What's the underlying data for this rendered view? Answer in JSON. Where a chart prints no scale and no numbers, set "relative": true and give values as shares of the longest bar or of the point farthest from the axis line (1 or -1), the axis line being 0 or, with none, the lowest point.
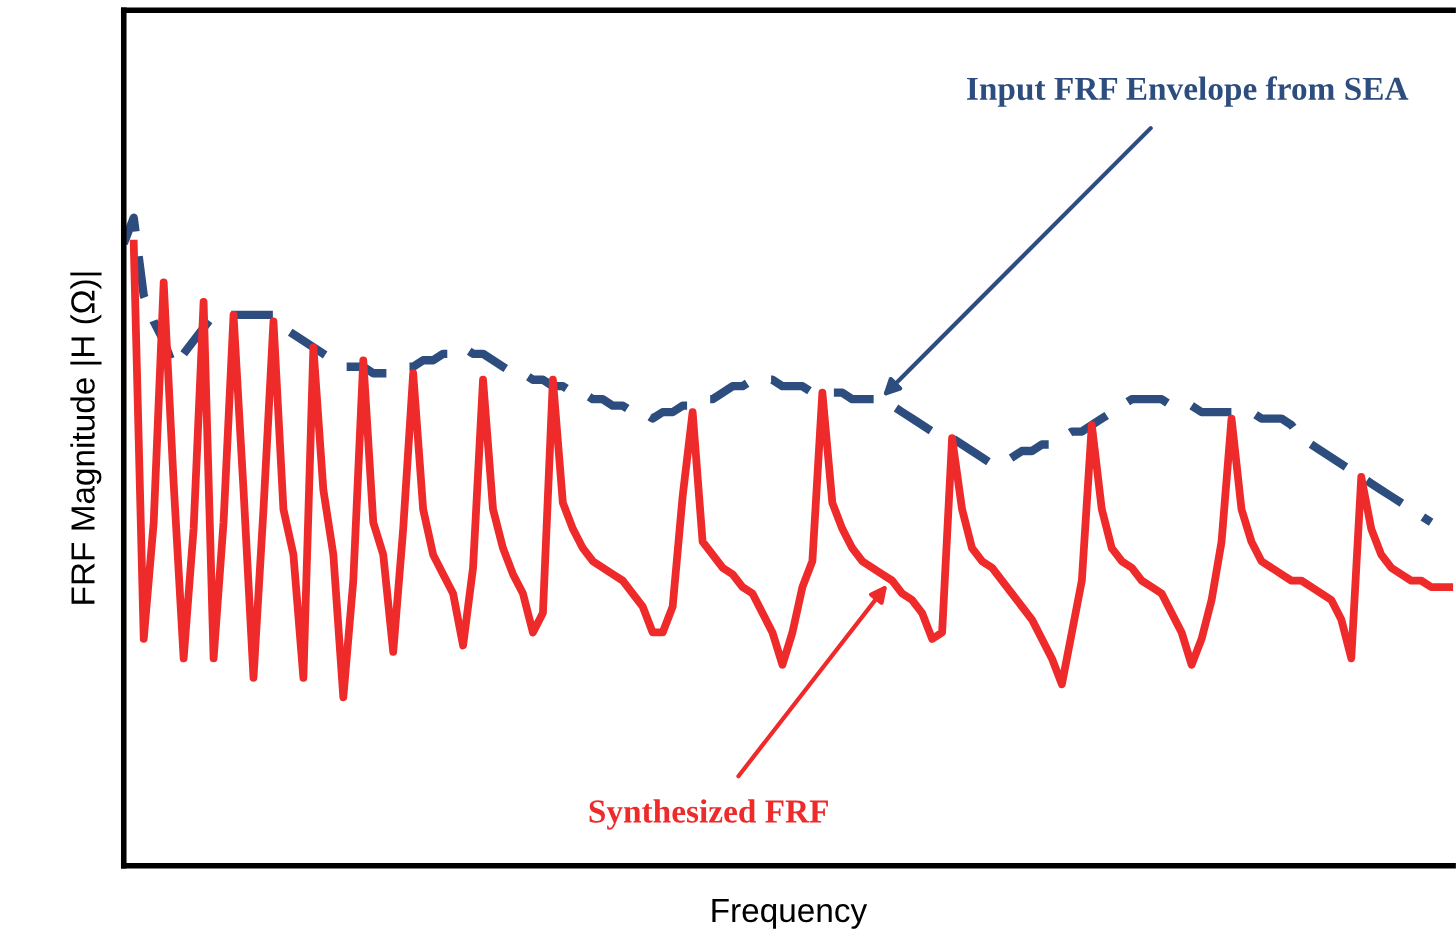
{
  "chart_data": {
    "type": "line",
    "relative": true,
    "xlabel": "Frequency",
    "ylabel": "FRF Magnitude |H (Ω)|",
    "categories": [
      null,
      null,
      null,
      null,
      null,
      null,
      null,
      null,
      null,
      null,
      null,
      null,
      null,
      null,
      null,
      null,
      null,
      null,
      null,
      null,
      null,
      null,
      null,
      null,
      null,
      null,
      null,
      null,
      null,
      null,
      null,
      null,
      null,
      null,
      null,
      null,
      null,
      null,
      null,
      null,
      null,
      null,
      null,
      null,
      null,
      null,
      null,
      null,
      null,
      null,
      null,
      null,
      null,
      null,
      null,
      null,
      null,
      null,
      null,
      null,
      null,
      null,
      null,
      null,
      null,
      null,
      null,
      null,
      null,
      null,
      null,
      null,
      null,
      null,
      null,
      null,
      null,
      null,
      null,
      null,
      null,
      null,
      null,
      null,
      null,
      null,
      null,
      null,
      null,
      null,
      null,
      null,
      null,
      null,
      null,
      null,
      null,
      null,
      null,
      null,
      null,
      null,
      null,
      null,
      null,
      null,
      null,
      null,
      null,
      null,
      null,
      null,
      null,
      null,
      null,
      null,
      null,
      null,
      null,
      null,
      null,
      null,
      null,
      null,
      null,
      null,
      null,
      null,
      null,
      null,
      null,
      null,
      null,
      null
    ],
    "series": [
      {
        "color": "#2e4d7f",
        "line_style": "dashed",
        "values": [
          0.96,
          1.0,
          0.88,
          0.84,
          0.81,
          0.77,
          0.79,
          0.81,
          0.83,
          0.85,
          0.85,
          0.85,
          0.85,
          0.85,
          0.85,
          0.85,
          0.83,
          0.82,
          0.81,
          0.8,
          0.79,
          0.78,
          0.77,
          0.77,
          0.77,
          0.76,
          0.76,
          0.76,
          0.77,
          0.77,
          0.78,
          0.78,
          0.79,
          0.79,
          0.8,
          0.79,
          0.79,
          0.78,
          0.77,
          0.76,
          0.76,
          0.75,
          0.75,
          0.74,
          0.74,
          0.73,
          0.73,
          0.72,
          0.72,
          0.71,
          0.71,
          0.7,
          0.7,
          0.69,
          0.7,
          0.7,
          0.71,
          0.71,
          0.72,
          0.72,
          0.73,
          0.74,
          0.74,
          0.75,
          0.75,
          0.75,
          0.74,
          0.74,
          0.74,
          0.73,
          0.73,
          0.73,
          0.73,
          0.72,
          0.72,
          0.72,
          0.72,
          0.71,
          0.7,
          0.69,
          0.68,
          0.67,
          0.67,
          0.66,
          0.65,
          0.64,
          0.63,
          0.62,
          0.62,
          0.63,
          0.64,
          0.64,
          0.65,
          0.65,
          0.66,
          0.67,
          0.67,
          0.68,
          0.69,
          0.7,
          0.71,
          0.72,
          0.72,
          0.72,
          0.72,
          0.71,
          0.71,
          0.71,
          0.7,
          0.7,
          0.7,
          0.7,
          0.7,
          0.7,
          0.69,
          0.69,
          0.69,
          0.68,
          0.66,
          0.65,
          0.64,
          0.63,
          0.62,
          0.61,
          0.6,
          0.59,
          0.58,
          0.57,
          0.56,
          0.55,
          0.54,
          0.53,
          null,
          null
        ]
      },
      {
        "color": "#ee2a2a",
        "line_style": "solid",
        "values": [
          null,
          0.96,
          0.35,
          0.53,
          0.9,
          0.59,
          0.32,
          0.52,
          0.87,
          0.32,
          0.53,
          0.85,
          0.58,
          0.29,
          0.55,
          0.84,
          0.55,
          0.48,
          0.29,
          0.8,
          0.58,
          0.48,
          0.26,
          0.44,
          0.78,
          0.53,
          0.48,
          0.33,
          0.52,
          0.76,
          0.55,
          0.48,
          0.45,
          0.42,
          0.34,
          0.46,
          0.75,
          0.55,
          0.49,
          0.45,
          0.42,
          0.36,
          0.39,
          0.75,
          0.56,
          0.52,
          0.49,
          0.47,
          0.46,
          0.45,
          0.44,
          0.42,
          0.4,
          0.36,
          0.36,
          0.4,
          0.57,
          0.7,
          0.5,
          0.48,
          0.46,
          0.45,
          0.43,
          0.42,
          0.39,
          0.36,
          0.31,
          0.36,
          0.43,
          0.47,
          0.73,
          0.56,
          0.52,
          0.49,
          0.47,
          0.46,
          0.45,
          0.44,
          0.42,
          0.41,
          0.39,
          0.35,
          0.36,
          0.66,
          0.55,
          0.49,
          0.47,
          0.46,
          0.44,
          0.42,
          0.4,
          0.38,
          0.35,
          0.32,
          0.28,
          0.36,
          0.44,
          0.68,
          0.55,
          0.49,
          0.47,
          0.46,
          0.44,
          0.43,
          0.42,
          0.39,
          0.36,
          0.31,
          0.35,
          0.41,
          0.5,
          0.69,
          0.55,
          0.5,
          0.47,
          0.46,
          0.45,
          0.44,
          0.44,
          0.43,
          0.42,
          0.41,
          0.38,
          0.32,
          0.6,
          0.52,
          0.48,
          0.46,
          0.45,
          0.44,
          0.44,
          0.43,
          0.43,
          0.43
        ]
      }
    ],
    "annotations": [
      "Input FRF Envelope from SEA",
      "Synthesized FRF"
    ]
  }
}
